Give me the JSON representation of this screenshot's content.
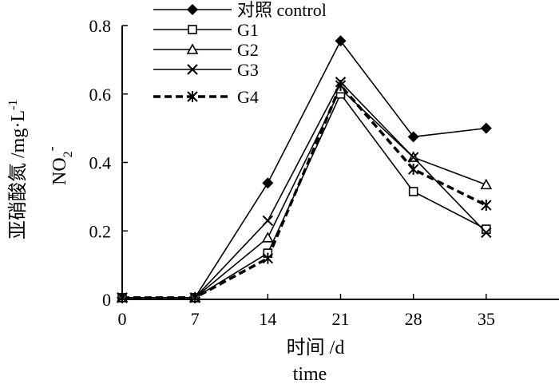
{
  "chart_data": {
    "type": "line",
    "x": [
      0,
      7,
      14,
      21,
      28,
      35
    ],
    "xlim": [
      0,
      42
    ],
    "ylim": [
      0,
      0.8
    ],
    "xticks": [
      0,
      7,
      14,
      21,
      28,
      35
    ],
    "yticks": [
      "0",
      "0.2",
      "0.4",
      "0.6",
      "0.8"
    ],
    "xlabel": "时间 /d",
    "xlabel_en": "time",
    "ylabel": "亚硝酸氮 /mg·L",
    "ylabel_sup": "-1",
    "ylabel_en": "NO",
    "ylabel_en_sub": "2",
    "ylabel_en_sup": "-",
    "legend_position": "top-left",
    "grid": false,
    "series": [
      {
        "name": "对照 control",
        "marker": "filled-diamond",
        "dash": false,
        "values": [
          0.005,
          0.005,
          0.34,
          0.755,
          0.475,
          0.5
        ]
      },
      {
        "name": "G1",
        "marker": "open-square",
        "dash": false,
        "values": [
          0.005,
          0.005,
          0.135,
          0.6,
          0.315,
          0.205
        ]
      },
      {
        "name": "G2",
        "marker": "open-triangle",
        "dash": false,
        "values": [
          0.005,
          0.005,
          0.18,
          0.615,
          0.415,
          0.335
        ]
      },
      {
        "name": "G3",
        "marker": "x",
        "dash": false,
        "values": [
          0.005,
          0.005,
          0.23,
          0.635,
          0.415,
          0.195
        ]
      },
      {
        "name": "G4",
        "marker": "asterisk",
        "dash": true,
        "values": [
          0.005,
          0.005,
          0.12,
          0.625,
          0.38,
          0.275
        ]
      }
    ]
  }
}
